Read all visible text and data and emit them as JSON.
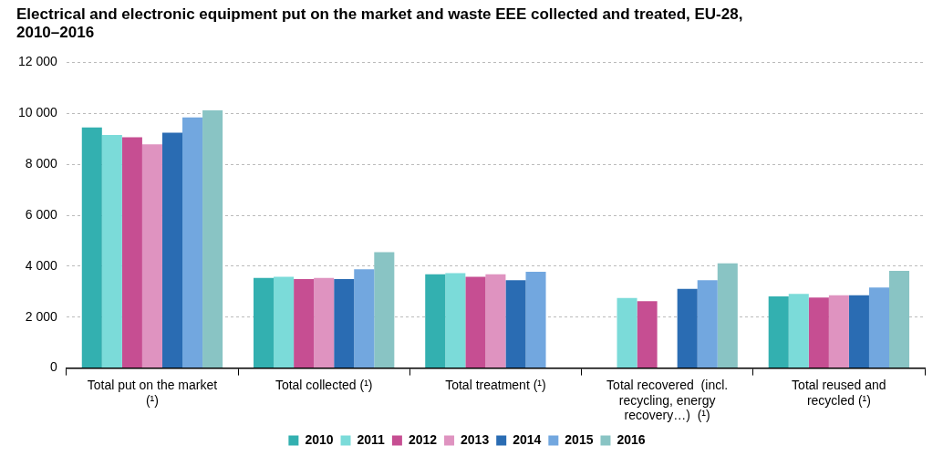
{
  "chart_data": {
    "type": "bar",
    "title": "Electrical and electronic equipment put on the market and waste EEE collected and treated, EU-28, 2010–2016",
    "categories": [
      "Total put on the market (¹)",
      "Total collected (¹)",
      "Total treatment (¹)",
      "Total recovered  (incl. recycling, energy recovery…)  (¹)",
      "Total reused and recycled (¹)"
    ],
    "series": [
      {
        "name": "2010",
        "color": "#33b0b0",
        "values": [
          9450,
          3540,
          3680,
          null,
          2810
        ]
      },
      {
        "name": "2011",
        "color": "#7bdbd9",
        "values": [
          9150,
          3580,
          3730,
          2750,
          2910
        ]
      },
      {
        "name": "2012",
        "color": "#c64e92",
        "values": [
          9060,
          3490,
          3580,
          2630,
          2770
        ]
      },
      {
        "name": "2013",
        "color": "#df93c0",
        "values": [
          8780,
          3540,
          3680,
          null,
          2860
        ]
      },
      {
        "name": "2014",
        "color": "#2a6cb3",
        "values": [
          9240,
          3490,
          3450,
          3110,
          2860
        ]
      },
      {
        "name": "2015",
        "color": "#72a7df",
        "values": [
          9840,
          3880,
          3780,
          3450,
          3160
        ]
      },
      {
        "name": "2016",
        "color": "#89c4c4",
        "values": [
          10120,
          4550,
          null,
          4110,
          3820
        ]
      }
    ],
    "ylim": [
      0,
      12000
    ],
    "yticks": [
      {
        "value": 0,
        "label": "0"
      },
      {
        "value": 2000,
        "label": "2 000"
      },
      {
        "value": 4000,
        "label": "4 000"
      },
      {
        "value": 6000,
        "label": "6 000"
      },
      {
        "value": 8000,
        "label": "8 000"
      },
      {
        "value": 10000,
        "label": "10 000"
      },
      {
        "value": 12000,
        "label": "12 000"
      }
    ],
    "grid": "y",
    "legend": "bottom"
  }
}
